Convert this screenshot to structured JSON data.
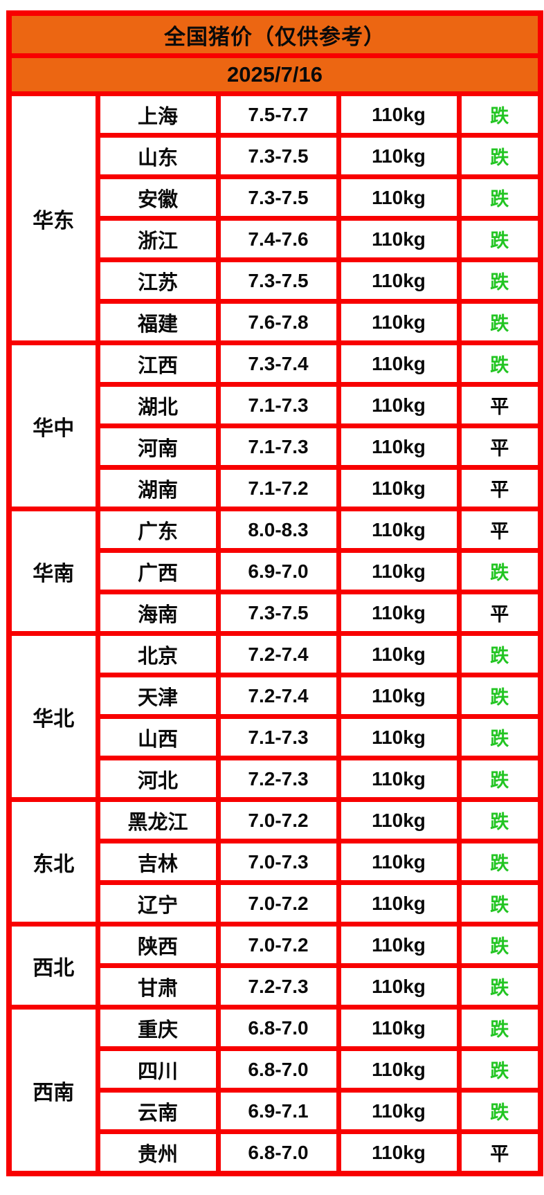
{
  "header": {
    "title": "全国猪价（仅供参考）",
    "date": "2025/7/16"
  },
  "legend": {
    "down_label": "跌",
    "flat_label": "平"
  },
  "colors": {
    "header_bg": "#EC6612",
    "grid_border": "#F80000",
    "status_down_green": "#22C522",
    "status_flat_black": "#000000",
    "cell_bg": "#FFFFFF",
    "text": "#0A0A0A"
  },
  "regions": [
    {
      "name": "华东",
      "rows": [
        {
          "province": "上海",
          "price": "7.5-7.7",
          "weight": "110kg",
          "status": "跌"
        },
        {
          "province": "山东",
          "price": "7.3-7.5",
          "weight": "110kg",
          "status": "跌"
        },
        {
          "province": "安徽",
          "price": "7.3-7.5",
          "weight": "110kg",
          "status": "跌"
        },
        {
          "province": "浙江",
          "price": "7.4-7.6",
          "weight": "110kg",
          "status": "跌"
        },
        {
          "province": "江苏",
          "price": "7.3-7.5",
          "weight": "110kg",
          "status": "跌"
        },
        {
          "province": "福建",
          "price": "7.6-7.8",
          "weight": "110kg",
          "status": "跌"
        }
      ]
    },
    {
      "name": "华中",
      "rows": [
        {
          "province": "江西",
          "price": "7.3-7.4",
          "weight": "110kg",
          "status": "跌"
        },
        {
          "province": "湖北",
          "price": "7.1-7.3",
          "weight": "110kg",
          "status": "平"
        },
        {
          "province": "河南",
          "price": "7.1-7.3",
          "weight": "110kg",
          "status": "平"
        },
        {
          "province": "湖南",
          "price": "7.1-7.2",
          "weight": "110kg",
          "status": "平"
        }
      ]
    },
    {
      "name": "华南",
      "rows": [
        {
          "province": "广东",
          "price": "8.0-8.3",
          "weight": "110kg",
          "status": "平"
        },
        {
          "province": "广西",
          "price": "6.9-7.0",
          "weight": "110kg",
          "status": "跌"
        },
        {
          "province": "海南",
          "price": "7.3-7.5",
          "weight": "110kg",
          "status": "平"
        }
      ]
    },
    {
      "name": "华北",
      "rows": [
        {
          "province": "北京",
          "price": "7.2-7.4",
          "weight": "110kg",
          "status": "跌"
        },
        {
          "province": "天津",
          "price": "7.2-7.4",
          "weight": "110kg",
          "status": "跌"
        },
        {
          "province": "山西",
          "price": "7.1-7.3",
          "weight": "110kg",
          "status": "跌"
        },
        {
          "province": "河北",
          "price": "7.2-7.3",
          "weight": "110kg",
          "status": "跌"
        }
      ]
    },
    {
      "name": "东北",
      "rows": [
        {
          "province": "黑龙江",
          "price": "7.0-7.2",
          "weight": "110kg",
          "status": "跌"
        },
        {
          "province": "吉林",
          "price": "7.0-7.3",
          "weight": "110kg",
          "status": "跌"
        },
        {
          "province": "辽宁",
          "price": "7.0-7.2",
          "weight": "110kg",
          "status": "跌"
        }
      ]
    },
    {
      "name": "西北",
      "rows": [
        {
          "province": "陕西",
          "price": "7.0-7.2",
          "weight": "110kg",
          "status": "跌"
        },
        {
          "province": "甘肃",
          "price": "7.2-7.3",
          "weight": "110kg",
          "status": "跌"
        }
      ]
    },
    {
      "name": "西南",
      "rows": [
        {
          "province": "重庆",
          "price": "6.8-7.0",
          "weight": "110kg",
          "status": "跌"
        },
        {
          "province": "四川",
          "price": "6.8-7.0",
          "weight": "110kg",
          "status": "跌"
        },
        {
          "province": "云南",
          "price": "6.9-7.1",
          "weight": "110kg",
          "status": "跌"
        },
        {
          "province": "贵州",
          "price": "6.8-7.0",
          "weight": "110kg",
          "status": "平"
        }
      ]
    }
  ],
  "chart_data": {
    "type": "table",
    "title": "全国猪价（仅供参考）",
    "subtitle": "2025/7/16",
    "rows": [
      [
        "华东",
        "上海",
        "7.5-7.7",
        "110kg",
        "跌"
      ],
      [
        "华东",
        "山东",
        "7.3-7.5",
        "110kg",
        "跌"
      ],
      [
        "华东",
        "安徽",
        "7.3-7.5",
        "110kg",
        "跌"
      ],
      [
        "华东",
        "浙江",
        "7.4-7.6",
        "110kg",
        "跌"
      ],
      [
        "华东",
        "江苏",
        "7.3-7.5",
        "110kg",
        "跌"
      ],
      [
        "华东",
        "福建",
        "7.6-7.8",
        "110kg",
        "跌"
      ],
      [
        "华中",
        "江西",
        "7.3-7.4",
        "110kg",
        "跌"
      ],
      [
        "华中",
        "湖北",
        "7.1-7.3",
        "110kg",
        "平"
      ],
      [
        "华中",
        "河南",
        "7.1-7.3",
        "110kg",
        "平"
      ],
      [
        "华中",
        "湖南",
        "7.1-7.2",
        "110kg",
        "平"
      ],
      [
        "华南",
        "广东",
        "8.0-8.3",
        "110kg",
        "平"
      ],
      [
        "华南",
        "广西",
        "6.9-7.0",
        "110kg",
        "跌"
      ],
      [
        "华南",
        "海南",
        "7.3-7.5",
        "110kg",
        "平"
      ],
      [
        "华北",
        "北京",
        "7.2-7.4",
        "110kg",
        "跌"
      ],
      [
        "华北",
        "天津",
        "7.2-7.4",
        "110kg",
        "跌"
      ],
      [
        "华北",
        "山西",
        "7.1-7.3",
        "110kg",
        "跌"
      ],
      [
        "华北",
        "河北",
        "7.2-7.3",
        "110kg",
        "跌"
      ],
      [
        "东北",
        "黑龙江",
        "7.0-7.2",
        "110kg",
        "跌"
      ],
      [
        "东北",
        "吉林",
        "7.0-7.3",
        "110kg",
        "跌"
      ],
      [
        "东北",
        "辽宁",
        "7.0-7.2",
        "110kg",
        "跌"
      ],
      [
        "西北",
        "陕西",
        "7.0-7.2",
        "110kg",
        "跌"
      ],
      [
        "西北",
        "甘肃",
        "7.2-7.3",
        "110kg",
        "跌"
      ],
      [
        "西南",
        "重庆",
        "6.8-7.0",
        "110kg",
        "跌"
      ],
      [
        "西南",
        "四川",
        "6.8-7.0",
        "110kg",
        "跌"
      ],
      [
        "西南",
        "云南",
        "6.9-7.1",
        "110kg",
        "跌"
      ],
      [
        "西南",
        "贵州",
        "6.8-7.0",
        "110kg",
        "平"
      ]
    ]
  }
}
